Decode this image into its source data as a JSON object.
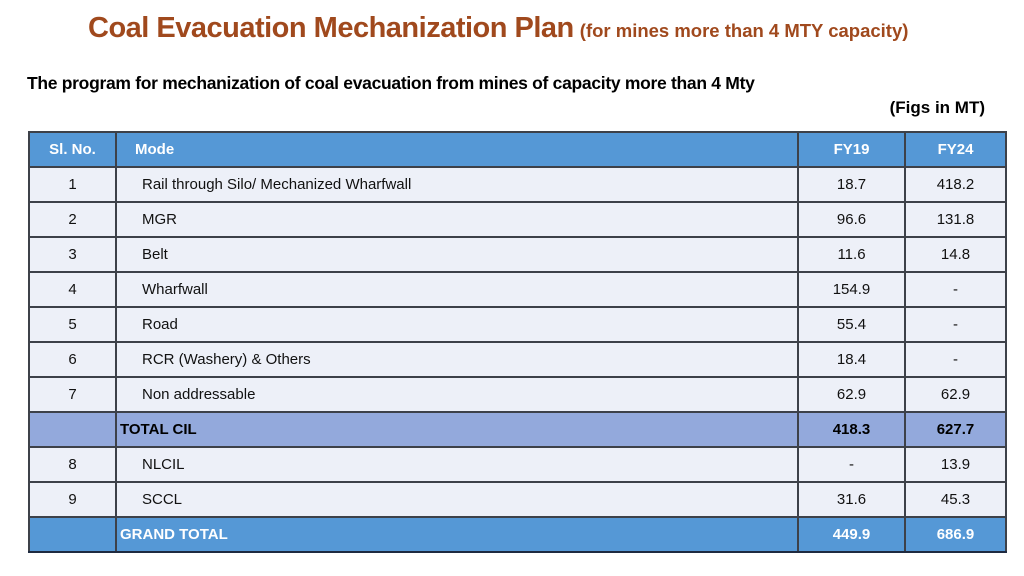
{
  "title": {
    "main": "Coal Evacuation Mechanization Plan",
    "paren": "(for mines more than 4 MTY capacity)"
  },
  "subtitle": "The program for mechanization of coal evacuation from mines of capacity more than 4 Mty",
  "units_note": "(Figs in MT)",
  "colors": {
    "title_brown": "#A0491D",
    "header_blue": "#5598D6",
    "subtotal_blue": "#93A9DC",
    "data_row_bg": "#EDF0F8",
    "border_dark": "#1e2a40"
  },
  "table": {
    "columns": [
      "Sl. No.",
      "Mode",
      "FY19",
      "FY24"
    ],
    "rows": [
      {
        "type": "data",
        "sl": "1",
        "mode": "Rail through Silo/ Mechanized Wharfwall",
        "fy19": "18.7",
        "fy24": "418.2"
      },
      {
        "type": "data",
        "sl": "2",
        "mode": "MGR",
        "fy19": "96.6",
        "fy24": "131.8"
      },
      {
        "type": "data",
        "sl": "3",
        "mode": "Belt",
        "fy19": "11.6",
        "fy24": "14.8"
      },
      {
        "type": "data",
        "sl": "4",
        "mode": "Wharfwall",
        "fy19": "154.9",
        "fy24": "-"
      },
      {
        "type": "data",
        "sl": "5",
        "mode": "Road",
        "fy19": "55.4",
        "fy24": "-"
      },
      {
        "type": "data",
        "sl": "6",
        "mode": "RCR (Washery) & Others",
        "fy19": "18.4",
        "fy24": "-"
      },
      {
        "type": "data",
        "sl": "7",
        "mode": "Non addressable",
        "fy19": "62.9",
        "fy24": "62.9"
      },
      {
        "type": "subtotal",
        "sl": "",
        "mode": "TOTAL CIL",
        "fy19": "418.3",
        "fy24": "627.7"
      },
      {
        "type": "data",
        "sl": "8",
        "mode": "NLCIL",
        "fy19": "-",
        "fy24": "13.9"
      },
      {
        "type": "data",
        "sl": "9",
        "mode": "SCCL",
        "fy19": "31.6",
        "fy24": "45.3"
      },
      {
        "type": "grandtotal",
        "sl": "",
        "mode": "GRAND TOTAL",
        "fy19": "449.9",
        "fy24": "686.9"
      }
    ]
  }
}
